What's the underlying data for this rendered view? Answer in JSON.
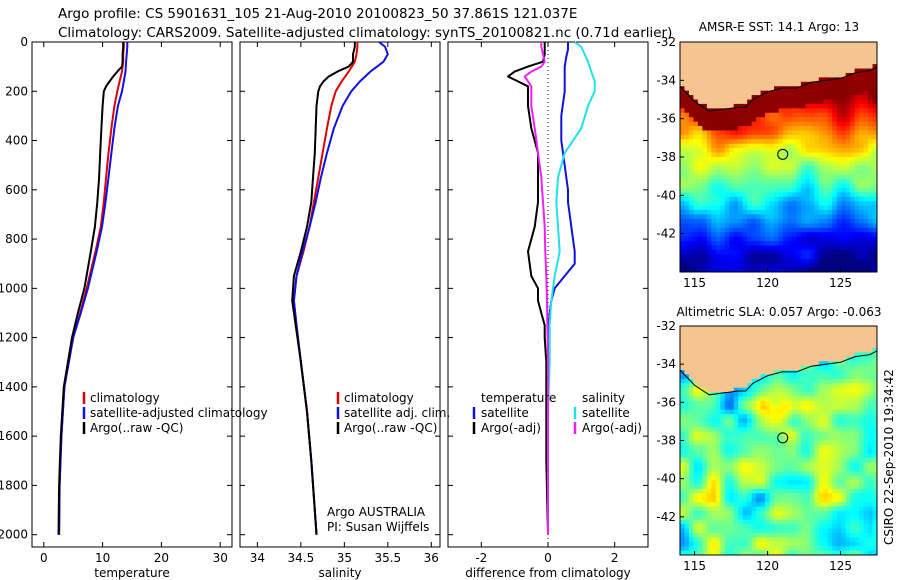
{
  "header": {
    "line1": "Argo profile: CS 5901631_105 21-Aug-2010 20100823_50 37.861S 121.037E",
    "line2": "Climatology: CARS2009. Satellite-adjusted climatology: synTS_20100821.nc (0.71d earlier)"
  },
  "credits": {
    "agency": "Argo AUSTRALIA",
    "pi": "PI: Susan Wijffels",
    "stamp": "CSIRO 22-Sep-2010 19:34:42"
  },
  "colors": {
    "climatology": "#e00000",
    "satellite": "#1010e0",
    "argo": "#000000",
    "cyan": "#20e0f0",
    "magenta": "#f020f0",
    "land": "#f6c490"
  },
  "chart_data": [
    {
      "id": "temperature",
      "type": "line",
      "xlabel": "temperature",
      "ylabel": "",
      "xlim": [
        -2,
        32
      ],
      "ylim": [
        2050,
        0
      ],
      "xticks": [
        "0",
        "10",
        "20",
        "30"
      ],
      "xtick_values": [
        0,
        10,
        20,
        30
      ],
      "yticks": [
        "0",
        "200",
        "400",
        "600",
        "800",
        "1000",
        "1200",
        "1400",
        "1600",
        "1800",
        "2000"
      ],
      "ytick_values": [
        0,
        200,
        400,
        600,
        800,
        1000,
        1200,
        1400,
        1600,
        1800,
        2000
      ],
      "legend": [
        "climatology",
        "satellite-adjusted climatology",
        "Argo(..raw -QC)"
      ],
      "legend_position": "lower-right",
      "series": [
        {
          "name": "climatology",
          "color": "#e00000",
          "depth": [
            0,
            20,
            50,
            80,
            120,
            160,
            200,
            260,
            350,
            450,
            550,
            650,
            750,
            850,
            1000,
            1100,
            1200,
            1400,
            1600,
            1800,
            2000
          ],
          "values": [
            13.6,
            13.6,
            13.5,
            13.5,
            13.3,
            12.9,
            12.5,
            12.0,
            11.5,
            11.0,
            10.6,
            10.2,
            9.7,
            8.8,
            7.3,
            6.2,
            5.0,
            3.5,
            3.0,
            2.7,
            2.6
          ]
        },
        {
          "name": "satellite-adjusted climatology",
          "color": "#1010e0",
          "depth": [
            0,
            20,
            50,
            80,
            120,
            160,
            200,
            260,
            350,
            450,
            550,
            650,
            750,
            850,
            1000,
            1100,
            1200,
            1400,
            1600,
            1800,
            2000
          ],
          "values": [
            14.2,
            14.2,
            14.1,
            14.0,
            13.9,
            13.6,
            13.3,
            12.6,
            12.0,
            11.5,
            11.0,
            10.5,
            9.9,
            9.0,
            7.5,
            6.3,
            5.0,
            3.5,
            3.0,
            2.7,
            2.6
          ]
        },
        {
          "name": "Argo(..raw -QC)",
          "color": "#000000",
          "depth": [
            0,
            20,
            50,
            80,
            100,
            120,
            140,
            160,
            180,
            200,
            260,
            350,
            450,
            550,
            650,
            750,
            850,
            1000,
            1100,
            1200,
            1400,
            1600,
            1800,
            2000
          ],
          "values": [
            13.5,
            13.5,
            13.4,
            13.4,
            13.3,
            12.5,
            11.8,
            11.2,
            10.6,
            10.2,
            10.0,
            9.8,
            9.6,
            9.4,
            9.1,
            8.7,
            8.0,
            6.9,
            5.8,
            4.8,
            3.4,
            2.9,
            2.6,
            2.5
          ]
        }
      ]
    },
    {
      "id": "salinity",
      "type": "line",
      "xlabel": "salinity",
      "ylabel": "",
      "xlim": [
        33.8,
        36.1
      ],
      "ylim": [
        2050,
        0
      ],
      "xticks": [
        "34",
        "34.5",
        "35",
        "35.5",
        "36"
      ],
      "xtick_values": [
        34,
        34.5,
        35,
        35.5,
        36
      ],
      "legend": [
        "climatology",
        "satellite adj. clim.",
        "Argo(..raw -QC)"
      ],
      "legend_position": "lower-right",
      "series": [
        {
          "name": "climatology",
          "color": "#e00000",
          "depth": [
            0,
            20,
            50,
            80,
            120,
            160,
            200,
            260,
            350,
            450,
            550,
            650,
            750,
            850,
            950,
            1050,
            1150,
            1300,
            1500,
            1700,
            1900,
            2000
          ],
          "values": [
            35.15,
            35.15,
            35.14,
            35.12,
            35.05,
            34.97,
            34.9,
            34.85,
            34.8,
            34.75,
            34.7,
            34.65,
            34.6,
            34.53,
            34.45,
            34.42,
            34.45,
            34.5,
            34.57,
            34.62,
            34.66,
            34.68
          ]
        },
        {
          "name": "satellite adj. clim.",
          "color": "#1010e0",
          "depth": [
            0,
            20,
            50,
            80,
            120,
            160,
            200,
            260,
            350,
            450,
            550,
            650,
            750,
            850,
            950,
            1050,
            1150,
            1300,
            1500,
            1700,
            1900,
            2000
          ],
          "values": [
            35.4,
            35.47,
            35.5,
            35.45,
            35.3,
            35.18,
            35.08,
            34.98,
            34.88,
            34.8,
            34.73,
            34.67,
            34.6,
            34.52,
            34.45,
            34.42,
            34.45,
            34.5,
            34.57,
            34.62,
            34.66,
            34.68
          ]
        },
        {
          "name": "Argo(..raw -QC)",
          "color": "#000000",
          "depth": [
            0,
            20,
            50,
            80,
            100,
            120,
            140,
            160,
            180,
            200,
            260,
            350,
            450,
            550,
            650,
            750,
            850,
            950,
            1050,
            1150,
            1300,
            1500,
            1700,
            1900,
            2000
          ],
          "values": [
            35.12,
            35.12,
            35.1,
            35.1,
            35.05,
            34.92,
            34.82,
            34.76,
            34.72,
            34.7,
            34.68,
            34.67,
            34.66,
            34.64,
            34.62,
            34.57,
            34.5,
            34.42,
            34.4,
            34.44,
            34.5,
            34.57,
            34.62,
            34.66,
            34.68
          ]
        }
      ]
    },
    {
      "id": "difference",
      "type": "line",
      "xlabel": "difference from climatology",
      "ylabel": "",
      "xlim": [
        -3,
        3
      ],
      "ylim": [
        2050,
        0
      ],
      "xticks": [
        "-2",
        "0",
        "2"
      ],
      "xtick_values": [
        -2,
        0,
        2
      ],
      "legend_groups": [
        {
          "heading": "temperature",
          "entries": [
            "satellite",
            "Argo(-adj)"
          ]
        },
        {
          "heading": "salinity",
          "entries": [
            "satellite",
            "Argo(-adj)"
          ]
        }
      ],
      "legend_position": "lower-center",
      "series": [
        {
          "name": "temperature satellite",
          "color": "#1010e0",
          "depth": [
            0,
            30,
            60,
            100,
            150,
            200,
            250,
            300,
            350,
            400,
            450,
            500,
            550,
            600,
            650,
            700,
            750,
            800,
            850,
            900,
            950,
            1000,
            1050,
            1100,
            1150,
            1200,
            1300,
            1500,
            1700,
            2000
          ],
          "values": [
            0.6,
            0.6,
            0.55,
            0.5,
            0.5,
            0.5,
            0.45,
            0.4,
            0.4,
            0.4,
            0.45,
            0.5,
            0.55,
            0.6,
            0.6,
            0.65,
            0.7,
            0.75,
            0.8,
            0.8,
            0.5,
            0.2,
            0.1,
            0.05,
            0.02,
            0,
            0,
            0,
            0,
            0
          ]
        },
        {
          "name": "temperature Argo(-adj)",
          "color": "#000000",
          "depth": [
            0,
            20,
            50,
            80,
            100,
            120,
            140,
            160,
            180,
            200,
            260,
            350,
            450,
            550,
            650,
            750,
            850,
            950,
            1000,
            1050,
            1100,
            1150,
            1200,
            1300,
            1500,
            1700,
            2000
          ],
          "values": [
            -0.1,
            -0.1,
            -0.1,
            -0.15,
            -0.6,
            -1.0,
            -1.2,
            -0.9,
            -0.6,
            -0.6,
            -0.6,
            -0.5,
            -0.3,
            -0.3,
            -0.3,
            -0.4,
            -0.6,
            -0.5,
            -0.3,
            -0.3,
            -0.2,
            -0.1,
            -0.1,
            -0.05,
            -0.05,
            -0.05,
            0
          ]
        },
        {
          "name": "salinity satellite",
          "color": "#20e0f0",
          "depth": [
            0,
            20,
            50,
            80,
            120,
            160,
            200,
            260,
            350,
            450,
            550,
            650,
            750,
            850,
            950,
            1050,
            1150,
            1300,
            1500,
            1700,
            1900,
            2000
          ],
          "values": [
            0.8,
            1.0,
            1.1,
            1.2,
            1.3,
            1.4,
            1.4,
            1.2,
            1.0,
            0.5,
            0.3,
            0.25,
            0.3,
            0.35,
            0.2,
            0.1,
            0.05,
            0.05,
            0,
            0,
            0,
            0
          ]
        },
        {
          "name": "salinity Argo(-adj)",
          "color": "#f020f0",
          "depth": [
            0,
            20,
            50,
            80,
            100,
            120,
            140,
            160,
            180,
            200,
            260,
            350,
            450,
            550,
            650,
            750,
            850,
            950,
            1050,
            1150,
            1300,
            1500,
            1700,
            1900,
            2000
          ],
          "values": [
            -0.2,
            -0.2,
            -0.15,
            -0.1,
            -0.2,
            -0.5,
            -0.7,
            -0.6,
            -0.5,
            -0.5,
            -0.5,
            -0.4,
            -0.3,
            -0.2,
            -0.15,
            -0.1,
            -0.08,
            -0.05,
            -0.03,
            -0.02,
            0,
            0,
            0,
            0,
            0
          ]
        }
      ]
    },
    {
      "id": "sst_map",
      "type": "heatmap",
      "title": "AMSR-E SST: 14.1 Argo: 13",
      "xlim": [
        114,
        127.5
      ],
      "ylim": [
        -44,
        -32
      ],
      "xticks": [
        "115",
        "120",
        "125"
      ],
      "xtick_values": [
        115,
        120,
        125
      ],
      "yticks": [
        "-32",
        "-34",
        "-36",
        "-38",
        "-40",
        "-42"
      ],
      "ytick_values": [
        -32,
        -34,
        -36,
        -38,
        -40,
        -42
      ],
      "marker": {
        "lon": 121.04,
        "lat": -37.86
      },
      "coast": {
        "lon": [
          114,
          115,
          116,
          117,
          118,
          118.5,
          119,
          120,
          121,
          122,
          123,
          124,
          125,
          126,
          127,
          127.5
        ],
        "lat": [
          -34.2,
          -35,
          -35.5,
          -35.4,
          -35.3,
          -35.3,
          -34.9,
          -34.5,
          -34.3,
          -34.3,
          -34,
          -33.9,
          -33.8,
          -33.5,
          -33.4,
          -33.2
        ]
      }
    },
    {
      "id": "sla_map",
      "type": "heatmap",
      "title": "Altimetric SLA: 0.057 Argo: -0.063",
      "xlim": [
        114,
        127.5
      ],
      "ylim": [
        -44,
        -32
      ],
      "xticks": [
        "115",
        "120",
        "125"
      ],
      "xtick_values": [
        115,
        120,
        125
      ],
      "yticks": [
        "-32",
        "-34",
        "-36",
        "-38",
        "-40",
        "-42"
      ],
      "ytick_values": [
        -32,
        -34,
        -36,
        -38,
        -40,
        -42
      ],
      "marker": {
        "lon": 121.04,
        "lat": -37.86
      },
      "coast": {
        "lon": [
          114,
          115,
          116,
          117,
          118,
          118.5,
          119,
          120,
          121,
          122,
          123,
          124,
          125,
          126,
          127,
          127.5
        ],
        "lat": [
          -34.2,
          -35,
          -35.5,
          -35.4,
          -35.3,
          -35.3,
          -34.9,
          -34.5,
          -34.3,
          -34.3,
          -34,
          -33.9,
          -33.8,
          -33.5,
          -33.4,
          -33.2
        ]
      }
    }
  ]
}
